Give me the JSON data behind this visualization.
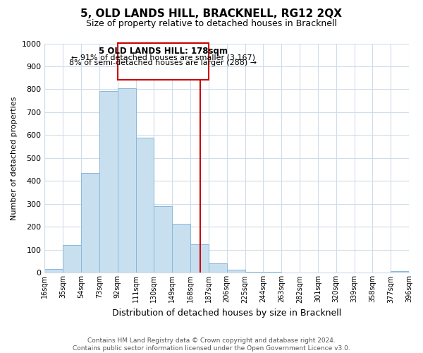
{
  "title": "5, OLD LANDS HILL, BRACKNELL, RG12 2QX",
  "subtitle": "Size of property relative to detached houses in Bracknell",
  "xlabel": "Distribution of detached houses by size in Bracknell",
  "ylabel": "Number of detached properties",
  "bar_labels": [
    "16sqm",
    "35sqm",
    "54sqm",
    "73sqm",
    "92sqm",
    "111sqm",
    "130sqm",
    "149sqm",
    "168sqm",
    "187sqm",
    "206sqm",
    "225sqm",
    "244sqm",
    "263sqm",
    "282sqm",
    "301sqm",
    "320sqm",
    "339sqm",
    "358sqm",
    "377sqm",
    "396sqm"
  ],
  "bar_values": [
    18,
    120,
    435,
    793,
    805,
    590,
    290,
    215,
    125,
    40,
    13,
    5,
    3,
    2,
    1,
    1,
    0,
    0,
    0,
    8
  ],
  "bar_color": "#c8dff0",
  "bar_edge_color": "#8ab8d8",
  "vline_x": 178,
  "vline_color": "#cc0000",
  "bin_edges": [
    16,
    35,
    54,
    73,
    92,
    111,
    130,
    149,
    168,
    187,
    206,
    225,
    244,
    263,
    282,
    301,
    320,
    339,
    358,
    377,
    396
  ],
  "annotation_title": "5 OLD LANDS HILL: 178sqm",
  "annotation_line1": "← 91% of detached houses are smaller (3,167)",
  "annotation_line2": "8% of semi-detached houses are larger (288) →",
  "annotation_box_color": "#ffffff",
  "annotation_box_edge": "#cc0000",
  "ylim": [
    0,
    1000
  ],
  "yticks": [
    0,
    100,
    200,
    300,
    400,
    500,
    600,
    700,
    800,
    900,
    1000
  ],
  "footer1": "Contains HM Land Registry data © Crown copyright and database right 2024.",
  "footer2": "Contains public sector information licensed under the Open Government Licence v3.0.",
  "bg_color": "#ffffff",
  "grid_color": "#d0dcea"
}
